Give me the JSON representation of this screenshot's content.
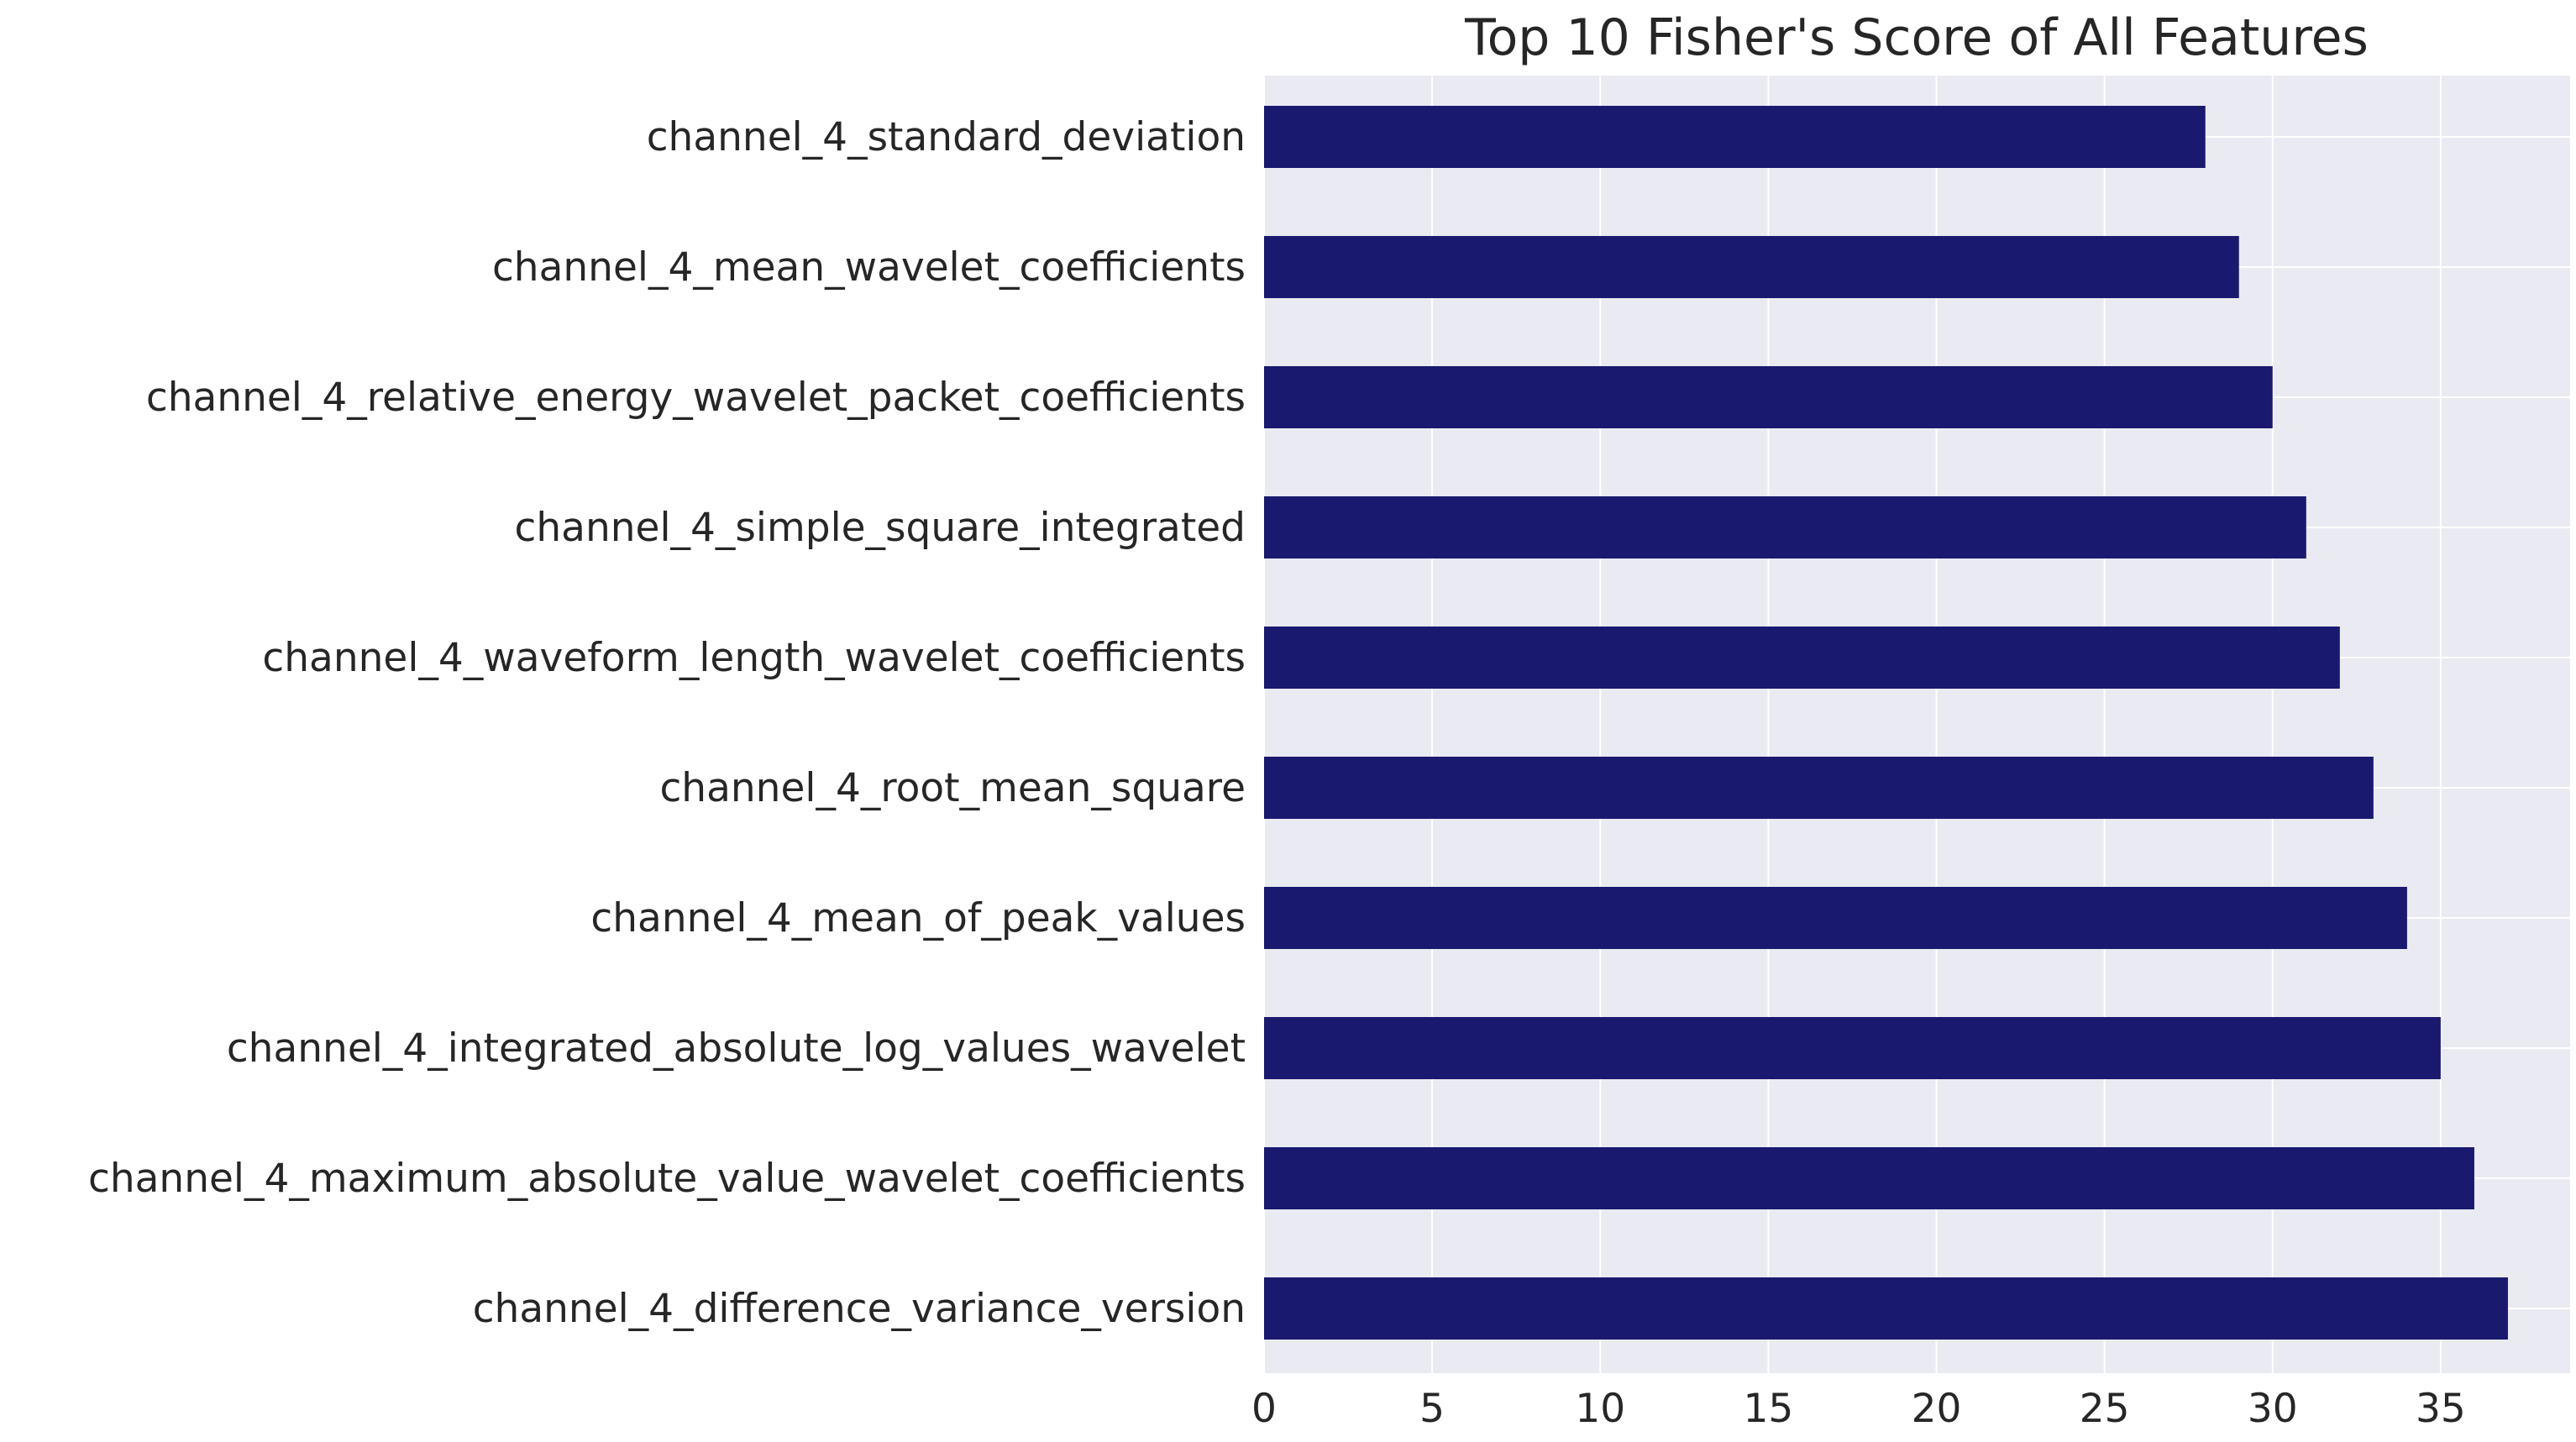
{
  "chart_data": {
    "type": "bar",
    "orientation": "horizontal",
    "title": "Top 10 Fisher's Score of All Features",
    "xlabel": "",
    "ylabel": "",
    "categories": [
      "channel_4_standard_deviation",
      "channel_4_mean_wavelet_coefficients",
      "channel_4_relative_energy_wavelet_packet_coefficients",
      "channel_4_simple_square_integrated",
      "channel_4_waveform_length_wavelet_coefficients",
      "channel_4_root_mean_square",
      "channel_4_mean_of_peak_values",
      "channel_4_integrated_absolute_log_values_wavelet",
      "channel_4_maximum_absolute_value_wavelet_coefficients",
      "channel_4_difference_variance_version"
    ],
    "values": [
      28,
      29,
      30,
      31,
      32,
      33,
      34,
      35,
      36,
      37
    ],
    "xlim": [
      0,
      38.85
    ],
    "xticks": [
      "0",
      "5",
      "10",
      "15",
      "20",
      "25",
      "30",
      "35"
    ],
    "grid": true,
    "legend": "none",
    "colors": {
      "bar": "#191970",
      "plot_background": "#eaeaf2",
      "grid": "#ffffff",
      "text": "#262626"
    }
  }
}
